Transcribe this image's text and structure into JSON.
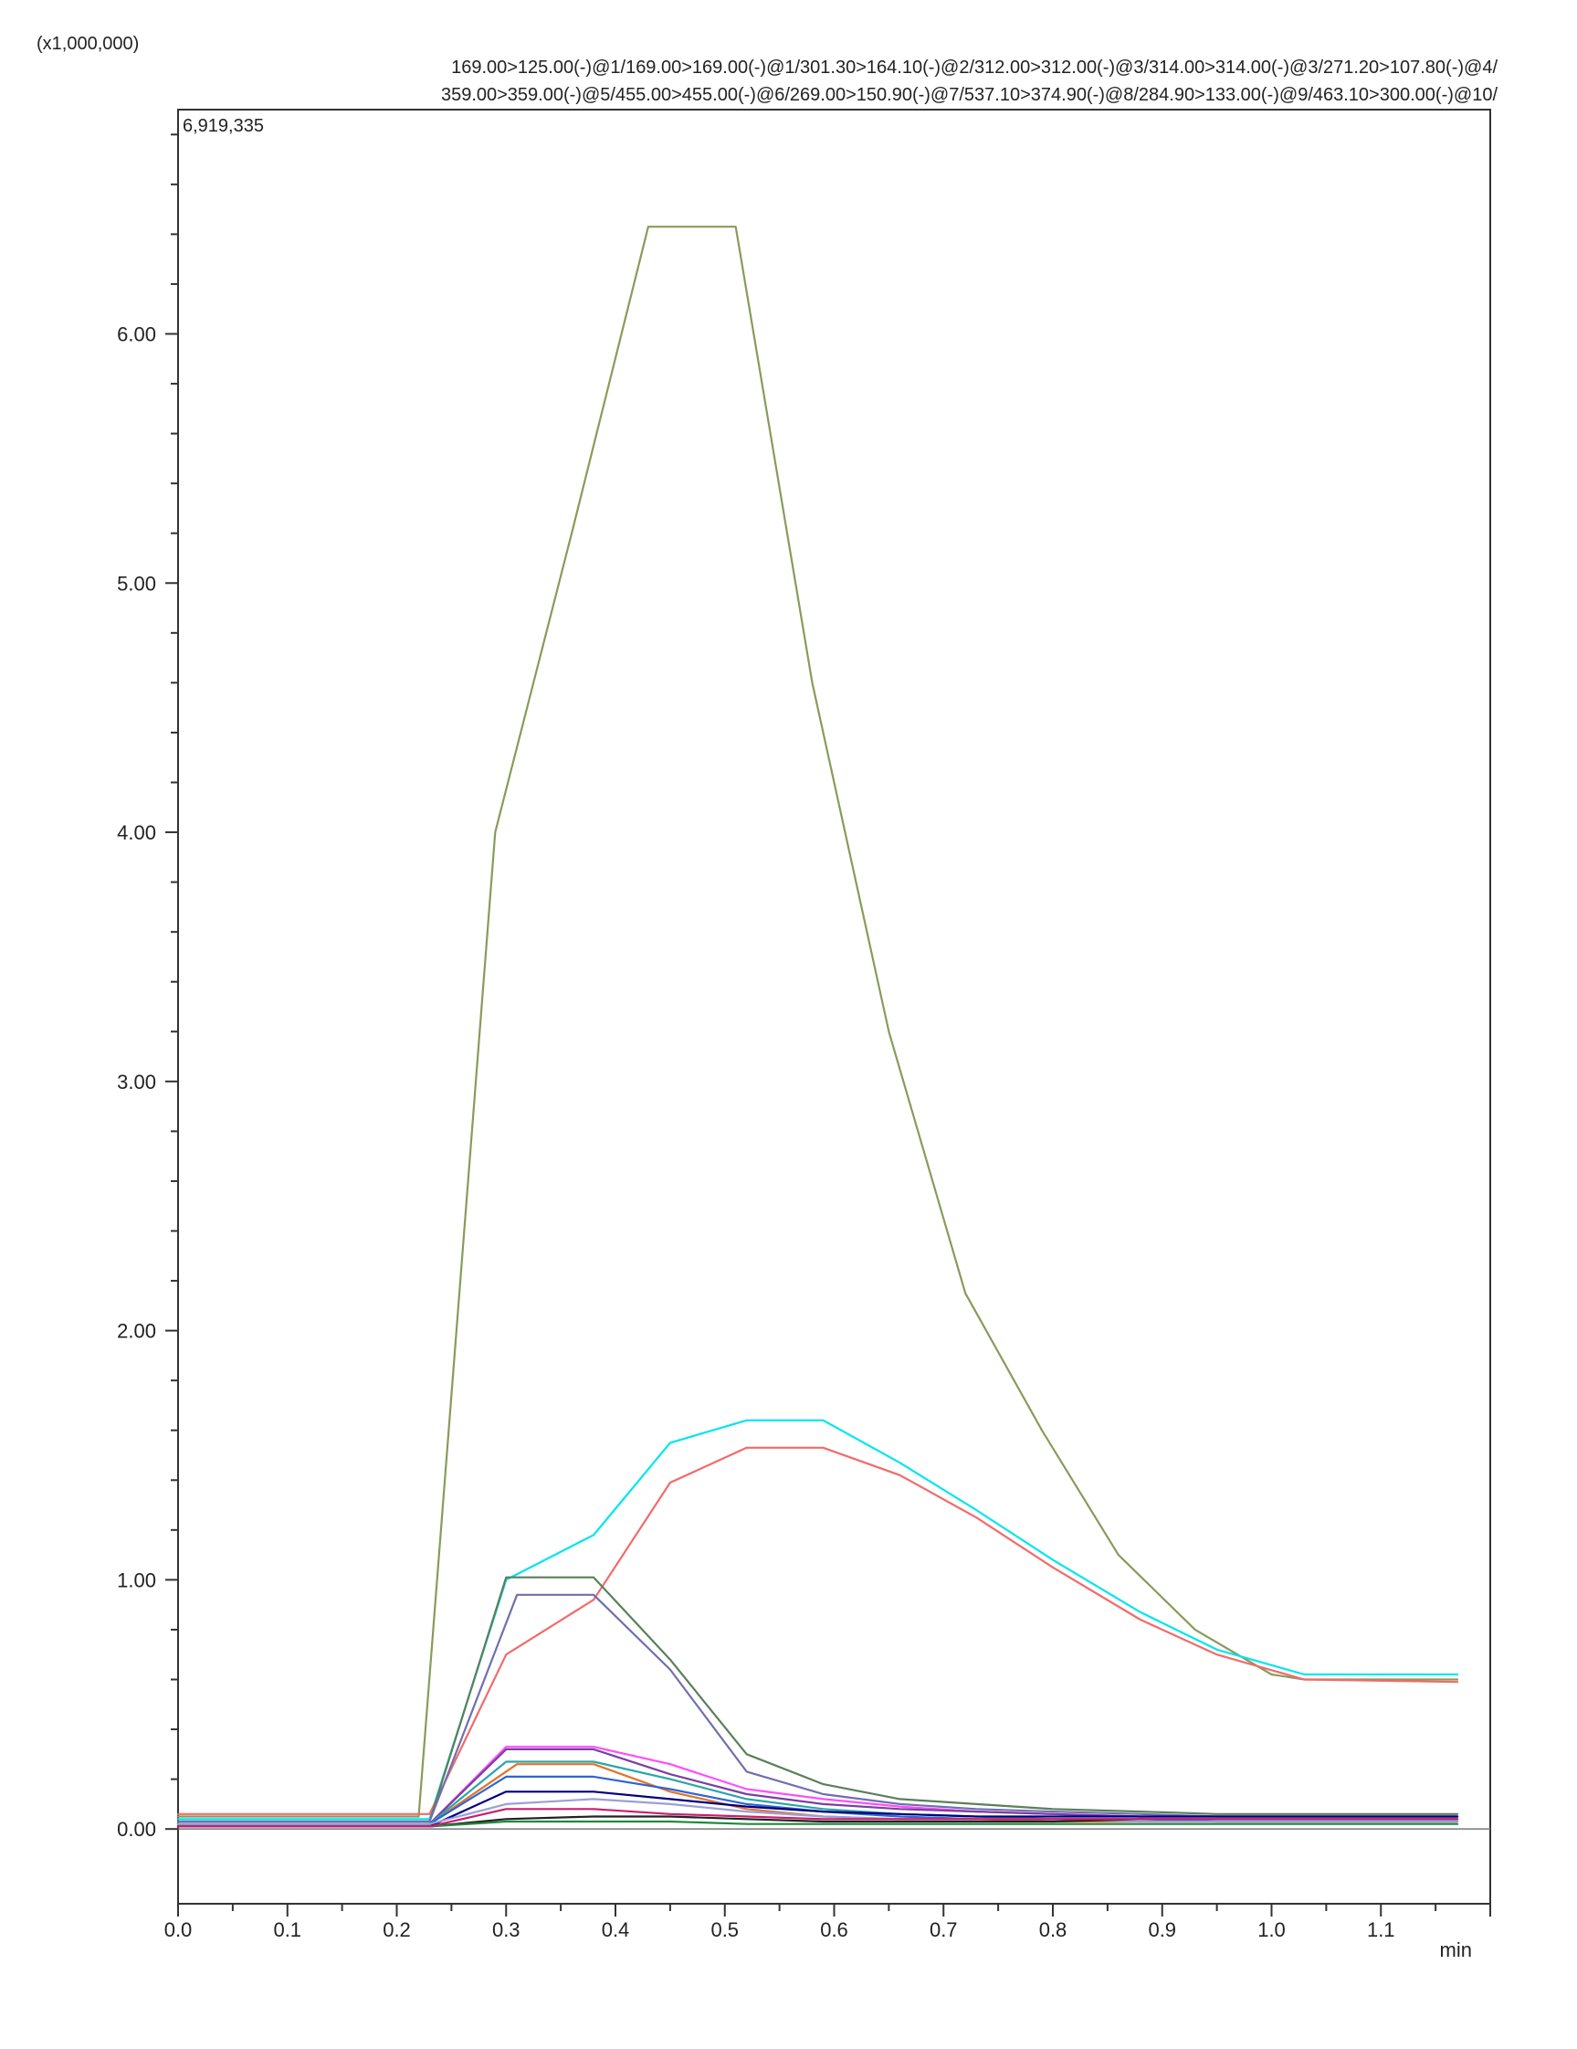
{
  "chart_data": {
    "type": "line",
    "multiplier_label": "(x1,000,000)",
    "header_lines": [
      "169.00>125.00(-)@1/169.00>169.00(-)@1/301.30>164.10(-)@2/312.00>312.00(-)@3/314.00>314.00(-)@3/271.20>107.80(-)@4/",
      "359.00>359.00(-)@5/455.00>455.00(-)@6/269.00>150.90(-)@7/537.10>374.90(-)@8/284.90>133.00(-)@9/463.10>300.00(-)@10/"
    ],
    "max_intensity_label": "6,919,335",
    "xlabel": "min",
    "ylabel": "",
    "xlim": [
      0.0,
      1.2
    ],
    "ylim": [
      -0.3,
      6.9
    ],
    "x_ticks": [
      "0.0",
      "0.1",
      "0.2",
      "0.3",
      "0.4",
      "0.5",
      "0.6",
      "0.7",
      "0.8",
      "0.9",
      "1.0",
      "1.1"
    ],
    "y_ticks": [
      "0.00",
      "1.00",
      "2.00",
      "3.00",
      "4.00",
      "5.00",
      "6.00"
    ],
    "grid": false,
    "series": [
      {
        "color": "#8a9a5b",
        "x": [
          0.0,
          0.22,
          0.29,
          0.36,
          0.43,
          0.51,
          0.58,
          0.65,
          0.72,
          0.79,
          0.86,
          0.93,
          1.0,
          1.03,
          1.17
        ],
        "y": [
          0.05,
          0.05,
          4.0,
          5.2,
          6.43,
          6.43,
          4.6,
          3.2,
          2.15,
          1.6,
          1.1,
          0.8,
          0.62,
          0.6,
          0.6
        ]
      },
      {
        "color": "#00e5ee",
        "x": [
          0.0,
          0.23,
          0.3,
          0.38,
          0.45,
          0.52,
          0.59,
          0.66,
          0.73,
          0.8,
          0.88,
          0.95,
          1.03,
          1.17
        ],
        "y": [
          0.04,
          0.04,
          1.0,
          1.18,
          1.55,
          1.64,
          1.64,
          1.47,
          1.28,
          1.08,
          0.87,
          0.72,
          0.62,
          0.62
        ]
      },
      {
        "color": "#f26a6a",
        "x": [
          0.0,
          0.23,
          0.3,
          0.38,
          0.45,
          0.52,
          0.59,
          0.66,
          0.73,
          0.8,
          0.88,
          0.95,
          1.03,
          1.17
        ],
        "y": [
          0.06,
          0.06,
          0.7,
          0.92,
          1.39,
          1.53,
          1.53,
          1.42,
          1.25,
          1.05,
          0.84,
          0.7,
          0.6,
          0.59
        ]
      },
      {
        "color": "#5b7f5b",
        "x": [
          0.0,
          0.23,
          0.3,
          0.38,
          0.45,
          0.52,
          0.59,
          0.66,
          0.73,
          0.8,
          0.88,
          0.95,
          1.03,
          1.17
        ],
        "y": [
          0.03,
          0.03,
          1.01,
          1.01,
          0.68,
          0.3,
          0.18,
          0.12,
          0.1,
          0.08,
          0.07,
          0.06,
          0.06,
          0.06
        ]
      },
      {
        "color": "#6f6fb0",
        "x": [
          0.0,
          0.23,
          0.31,
          0.38,
          0.45,
          0.52,
          0.59,
          0.66,
          0.73,
          0.8,
          0.88,
          0.95,
          1.03,
          1.17
        ],
        "y": [
          0.03,
          0.03,
          0.94,
          0.94,
          0.64,
          0.23,
          0.14,
          0.1,
          0.08,
          0.07,
          0.06,
          0.05,
          0.05,
          0.05
        ]
      },
      {
        "color": "#ff4dff",
        "x": [
          0.0,
          0.23,
          0.3,
          0.38,
          0.45,
          0.52,
          0.59,
          0.66,
          0.73,
          0.8,
          0.88,
          0.95,
          1.03,
          1.17
        ],
        "y": [
          0.02,
          0.02,
          0.33,
          0.33,
          0.26,
          0.16,
          0.12,
          0.09,
          0.07,
          0.06,
          0.05,
          0.05,
          0.05,
          0.05
        ]
      },
      {
        "color": "#7b3fa0",
        "x": [
          0.0,
          0.23,
          0.3,
          0.38,
          0.45,
          0.52,
          0.59,
          0.66,
          0.73,
          0.8,
          0.88,
          0.95,
          1.03,
          1.17
        ],
        "y": [
          0.02,
          0.02,
          0.32,
          0.32,
          0.22,
          0.14,
          0.1,
          0.08,
          0.07,
          0.06,
          0.05,
          0.05,
          0.05,
          0.05
        ]
      },
      {
        "color": "#e5732a",
        "x": [
          0.0,
          0.23,
          0.31,
          0.38,
          0.45,
          0.52,
          0.59,
          0.66,
          0.73,
          0.8,
          0.88,
          0.95,
          1.03,
          1.17
        ],
        "y": [
          0.02,
          0.02,
          0.26,
          0.26,
          0.15,
          0.08,
          0.05,
          0.04,
          0.04,
          0.03,
          0.03,
          0.03,
          0.03,
          0.03
        ]
      },
      {
        "color": "#2aa6a6",
        "x": [
          0.0,
          0.23,
          0.3,
          0.38,
          0.45,
          0.52,
          0.59,
          0.66,
          0.73,
          0.8,
          0.88,
          0.95,
          1.03,
          1.17
        ],
        "y": [
          0.02,
          0.02,
          0.27,
          0.27,
          0.2,
          0.12,
          0.08,
          0.06,
          0.05,
          0.04,
          0.04,
          0.04,
          0.04,
          0.04
        ]
      },
      {
        "color": "#2f66d0",
        "x": [
          0.0,
          0.23,
          0.3,
          0.38,
          0.45,
          0.52,
          0.59,
          0.66,
          0.73,
          0.8,
          0.88,
          0.95,
          1.03,
          1.17
        ],
        "y": [
          0.02,
          0.02,
          0.21,
          0.21,
          0.16,
          0.1,
          0.07,
          0.05,
          0.04,
          0.04,
          0.04,
          0.03,
          0.03,
          0.03
        ]
      },
      {
        "color": "#000080",
        "x": [
          0.0,
          0.23,
          0.3,
          0.38,
          0.45,
          0.52,
          0.59,
          0.66,
          0.73,
          0.8,
          0.88,
          0.95,
          1.03,
          1.17
        ],
        "y": [
          0.01,
          0.01,
          0.15,
          0.15,
          0.12,
          0.09,
          0.07,
          0.06,
          0.05,
          0.05,
          0.05,
          0.05,
          0.05,
          0.05
        ]
      },
      {
        "color": "#9aa0d8",
        "x": [
          0.0,
          0.23,
          0.3,
          0.38,
          0.45,
          0.52,
          0.59,
          0.66,
          0.73,
          0.8,
          0.88,
          0.95,
          1.03,
          1.17
        ],
        "y": [
          0.02,
          0.02,
          0.1,
          0.12,
          0.1,
          0.07,
          0.05,
          0.04,
          0.04,
          0.04,
          0.03,
          0.03,
          0.03,
          0.03
        ]
      },
      {
        "color": "#222222",
        "x": [
          0.0,
          0.23,
          0.3,
          0.38,
          0.45,
          0.52,
          0.59,
          0.66,
          0.73,
          0.8,
          0.88,
          0.95,
          1.03,
          1.17
        ],
        "y": [
          0.01,
          0.01,
          0.04,
          0.05,
          0.05,
          0.04,
          0.03,
          0.03,
          0.03,
          0.03,
          0.04,
          0.04,
          0.04,
          0.04
        ]
      },
      {
        "color": "#1e8a3a",
        "x": [
          0.0,
          0.23,
          0.3,
          0.38,
          0.45,
          0.52,
          0.59,
          0.66,
          0.73,
          0.8,
          0.88,
          0.95,
          1.03,
          1.17
        ],
        "y": [
          0.01,
          0.01,
          0.03,
          0.03,
          0.03,
          0.02,
          0.02,
          0.02,
          0.02,
          0.02,
          0.02,
          0.02,
          0.02,
          0.02
        ]
      },
      {
        "color": "#c81e6e",
        "x": [
          0.0,
          0.23,
          0.3,
          0.38,
          0.45,
          0.52,
          0.59,
          0.66,
          0.73,
          0.8,
          0.88,
          0.95,
          1.03,
          1.17
        ],
        "y": [
          0.01,
          0.01,
          0.08,
          0.08,
          0.06,
          0.05,
          0.04,
          0.04,
          0.04,
          0.04,
          0.04,
          0.04,
          0.04,
          0.04
        ]
      }
    ]
  }
}
